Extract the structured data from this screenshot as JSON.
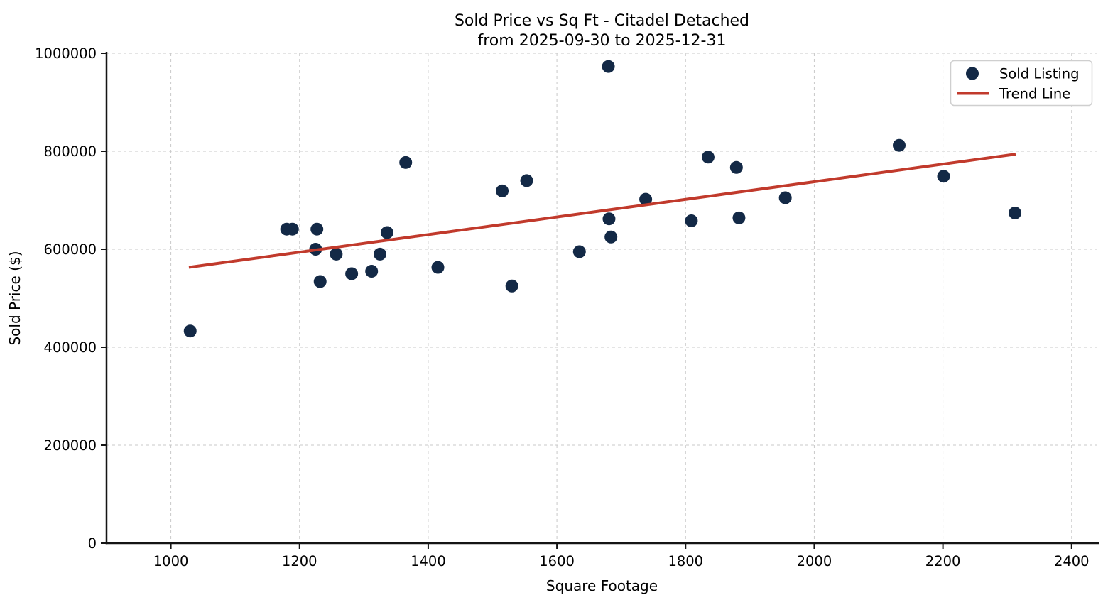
{
  "chart_data": {
    "type": "scatter",
    "title": "Sold Price vs Sq Ft - Citadel Detached",
    "subtitle": "from 2025-09-30 to 2025-12-31",
    "xlabel": "Square Footage",
    "ylabel": "Sold Price ($)",
    "xlim": [
      900,
      2440
    ],
    "ylim": [
      0,
      1000000
    ],
    "xticks": [
      1000,
      1200,
      1400,
      1600,
      1800,
      2000,
      2200,
      2400
    ],
    "yticks": [
      0,
      200000,
      400000,
      600000,
      800000,
      1000000
    ],
    "grid": true,
    "grid_color": "#c9c9c9",
    "axis_color": "#141414",
    "legend_position": "upper right",
    "series": [
      {
        "name": "Sold Listing",
        "type": "scatter",
        "color": "#132946",
        "marker_radius": 9,
        "points": [
          [
            1030,
            433000
          ],
          [
            1180,
            641000
          ],
          [
            1189,
            641000
          ],
          [
            1227,
            641000
          ],
          [
            1225,
            600000
          ],
          [
            1232,
            534000
          ],
          [
            1257,
            590000
          ],
          [
            1281,
            550000
          ],
          [
            1312,
            555000
          ],
          [
            1325,
            590000
          ],
          [
            1336,
            634000
          ],
          [
            1365,
            777000
          ],
          [
            1415,
            563000
          ],
          [
            1515,
            719000
          ],
          [
            1530,
            525000
          ],
          [
            1553,
            740000
          ],
          [
            1635,
            595000
          ],
          [
            1680,
            973000
          ],
          [
            1681,
            662000
          ],
          [
            1684,
            625000
          ],
          [
            1738,
            702000
          ],
          [
            1809,
            658000
          ],
          [
            1835,
            788000
          ],
          [
            1879,
            767000
          ],
          [
            1883,
            664000
          ],
          [
            1955,
            705000
          ],
          [
            2132,
            812000
          ],
          [
            2201,
            749000
          ],
          [
            2312,
            674000
          ]
        ]
      },
      {
        "name": "Trend Line",
        "type": "line",
        "color": "#c13a2c",
        "line_width": 4,
        "points": [
          [
            1028,
            563000
          ],
          [
            2313,
            794000
          ]
        ]
      }
    ]
  }
}
